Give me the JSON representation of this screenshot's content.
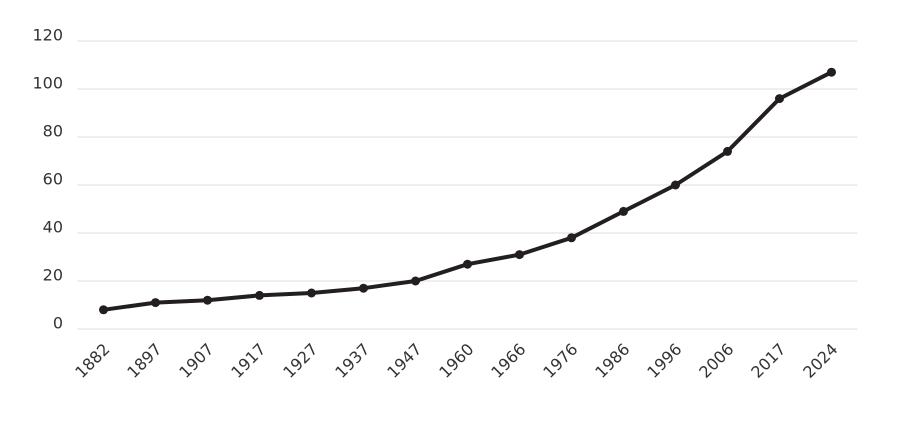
{
  "chart_data": {
    "type": "line",
    "categories": [
      "1882",
      "1897",
      "1907",
      "1917",
      "1927",
      "1937",
      "1947",
      "1960",
      "1966",
      "1976",
      "1986",
      "1996",
      "2006",
      "2017",
      "2024"
    ],
    "values": [
      8,
      11,
      12,
      14,
      15,
      17,
      20,
      27,
      31,
      38,
      49,
      60,
      74,
      96,
      107
    ],
    "color": "#231f20",
    "ylim": [
      0,
      120
    ],
    "yticks": [
      0,
      20,
      40,
      60,
      80,
      100,
      120
    ],
    "grid": true
  }
}
